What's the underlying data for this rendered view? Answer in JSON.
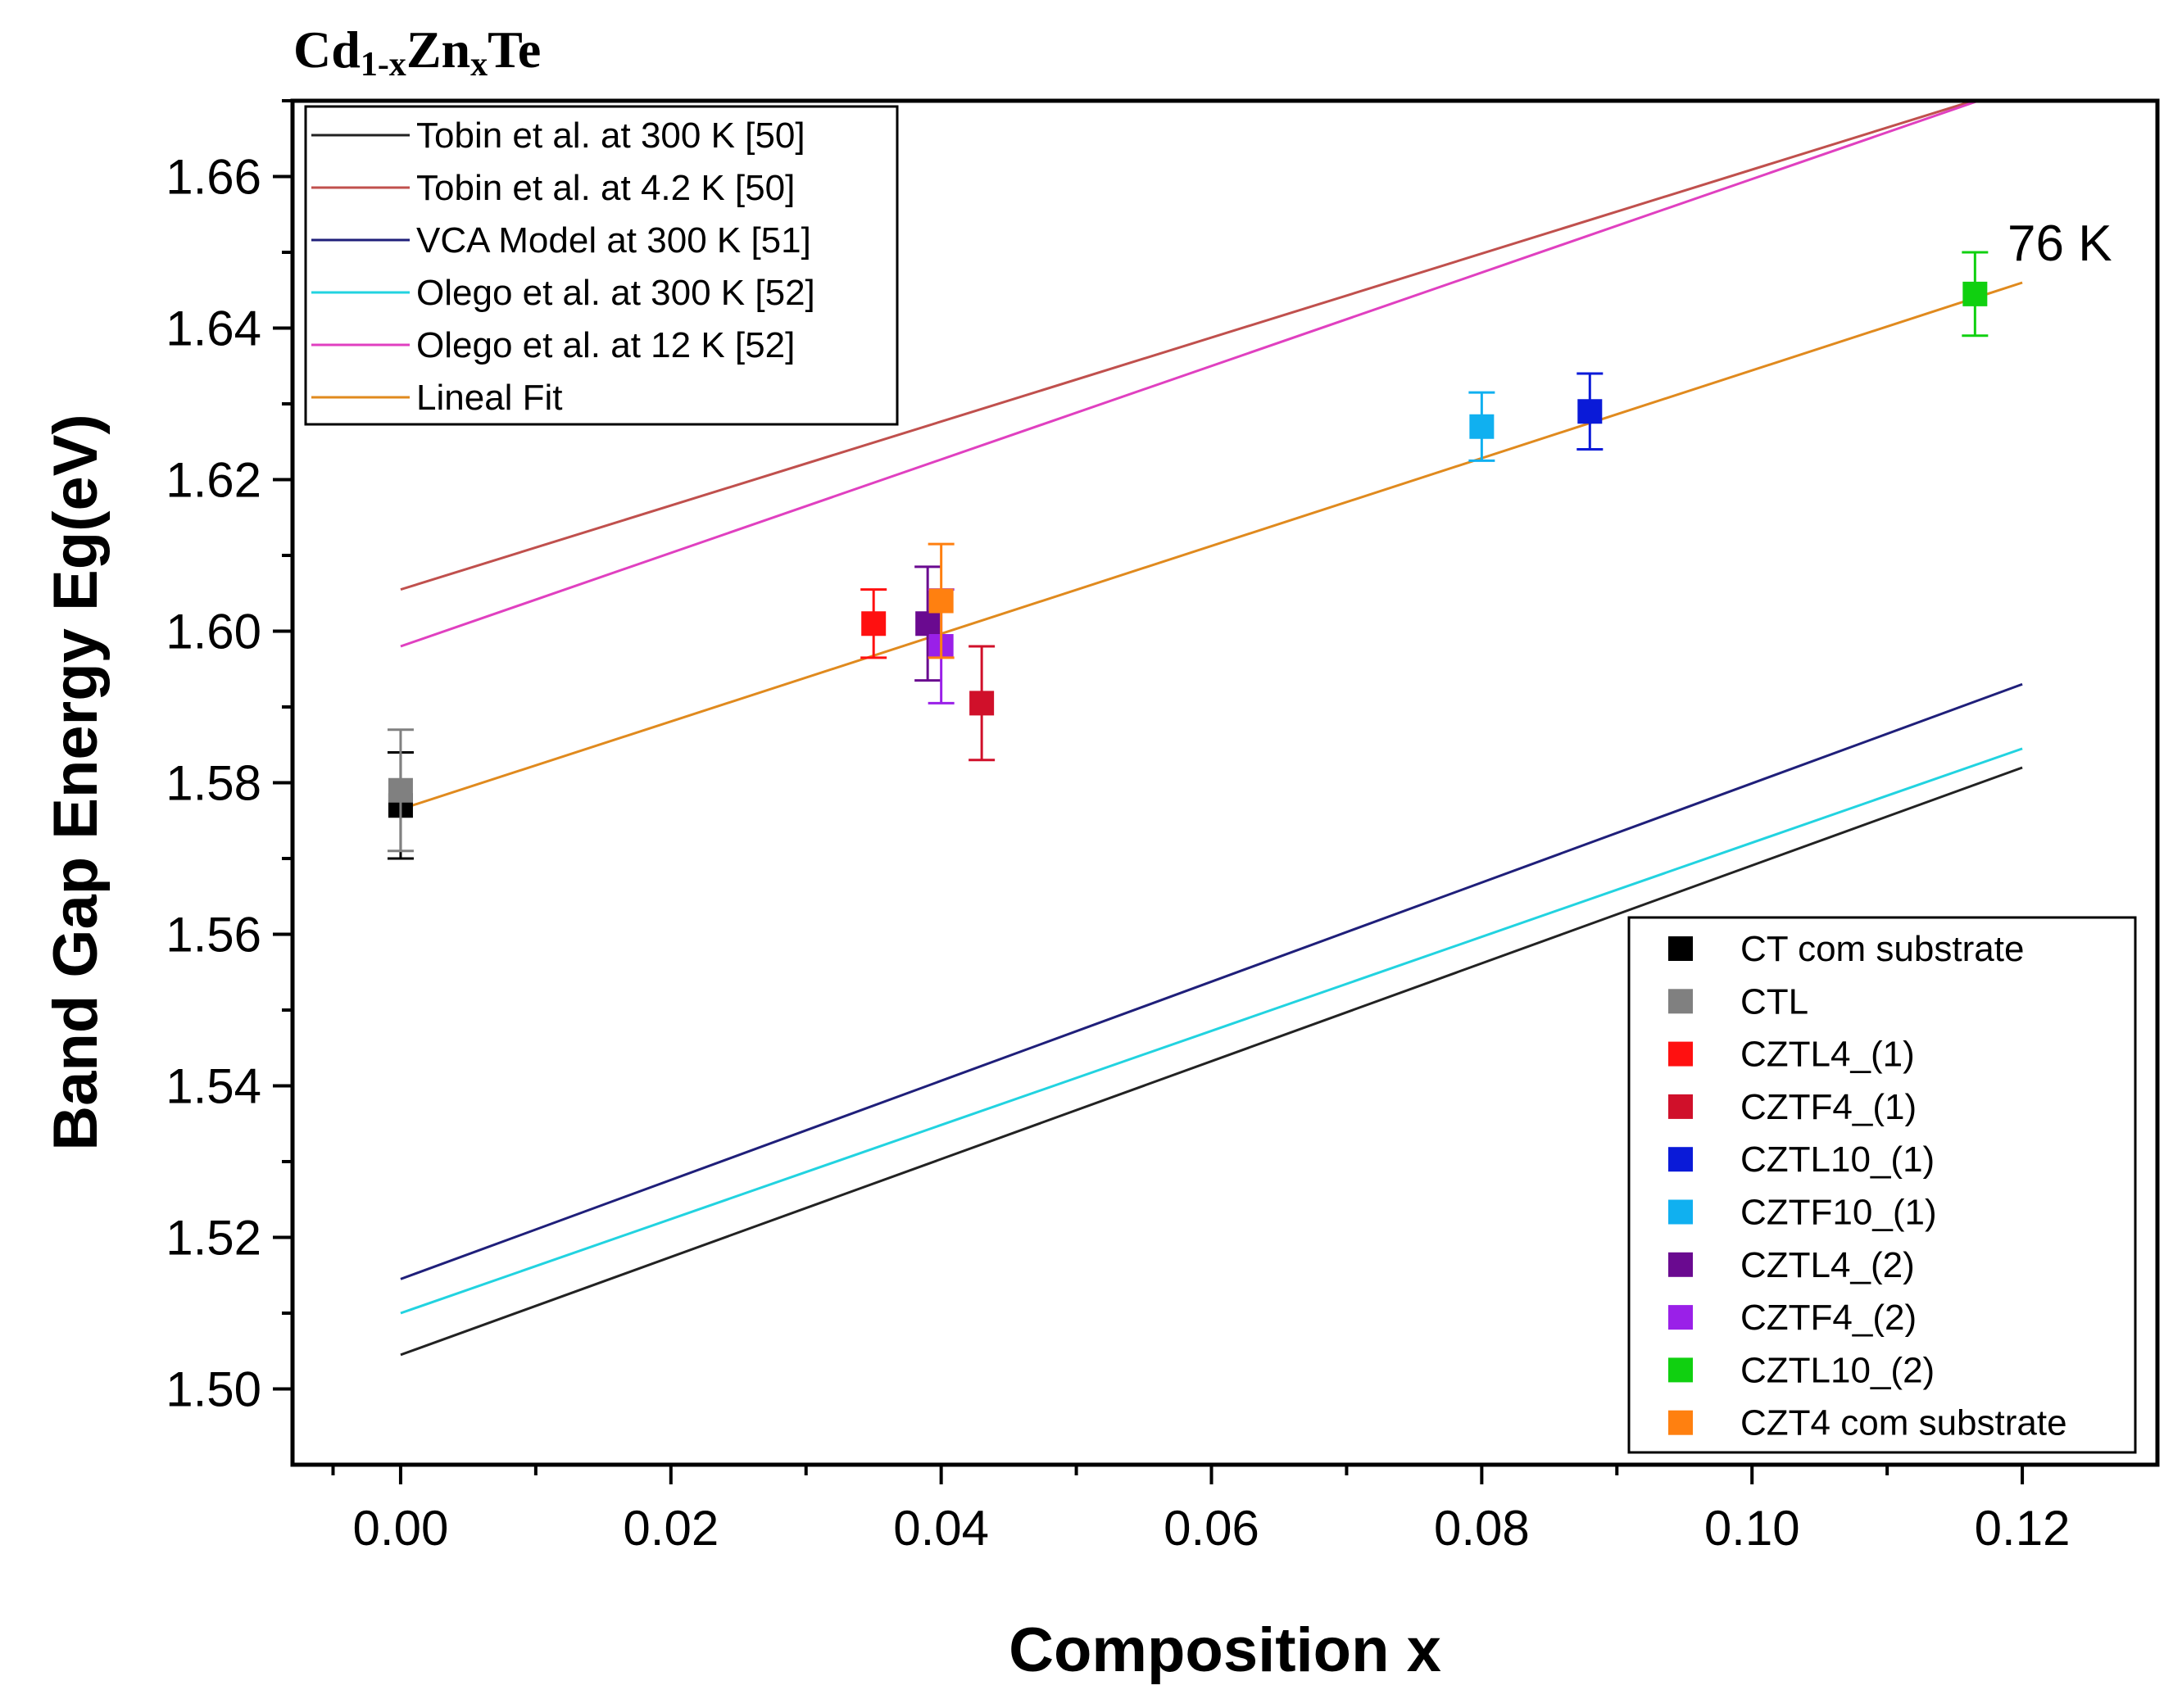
{
  "chart_data": {
    "type": "scatter",
    "title_parts": [
      {
        "text": "Cd",
        "sub": false
      },
      {
        "text": "1-x",
        "sub": true
      },
      {
        "text": "Zn",
        "sub": false
      },
      {
        "text": "x",
        "sub": true
      },
      {
        "text": "Te",
        "sub": false
      }
    ],
    "xlabel": "Composition x",
    "ylabel": "Band Gap Energy Eg(eV)",
    "xlim": [
      -0.008,
      0.13
    ],
    "ylim": [
      1.49,
      1.67
    ],
    "xticks": [
      0.0,
      0.02,
      0.04,
      0.06,
      0.08,
      0.1,
      0.12
    ],
    "xtick_labels": [
      "0.00",
      "0.02",
      "0.04",
      "0.06",
      "0.08",
      "0.10",
      "0.12"
    ],
    "yticks": [
      1.5,
      1.52,
      1.54,
      1.56,
      1.58,
      1.6,
      1.62,
      1.64,
      1.66
    ],
    "ytick_labels": [
      "1.50",
      "1.52",
      "1.54",
      "1.56",
      "1.58",
      "1.60",
      "1.62",
      "1.64",
      "1.66"
    ],
    "annotation": "76 K",
    "lines": [
      {
        "name": "Tobin et al. at 300 K [50]",
        "color": "#222222",
        "x": [
          0.0,
          0.12
        ],
        "y": [
          1.5045,
          1.582
        ]
      },
      {
        "name": "Tobin et al. at 4.2 K [50]",
        "color": "#c0504d",
        "x": [
          0.0,
          0.12
        ],
        "y": [
          1.6055,
          1.672
        ]
      },
      {
        "name": "VCA Model at 300 K [51]",
        "color": "#1f1f7a",
        "x": [
          0.0,
          0.12
        ],
        "y": [
          1.5145,
          1.593
        ]
      },
      {
        "name": "Olego et al. at 300 K [52]",
        "color": "#22d3e0",
        "x": [
          0.0,
          0.12
        ],
        "y": [
          1.51,
          1.5845
        ]
      },
      {
        "name": "Olego et al. at 12 K [52]",
        "color": "#e040c0",
        "x": [
          0.0,
          0.12
        ],
        "y": [
          1.598,
          1.672
        ]
      },
      {
        "name": "Lineal Fit",
        "color": "#e08a1e",
        "x": [
          0.0,
          0.12
        ],
        "y": [
          1.5765,
          1.646
        ]
      }
    ],
    "points": [
      {
        "name": "CT com substrate",
        "color": "#000000",
        "x": 0.0,
        "y": 1.577,
        "err": 0.007
      },
      {
        "name": "CTL",
        "color": "#808080",
        "x": 0.0,
        "y": 1.579,
        "err": 0.008
      },
      {
        "name": "CZTL4_(1)",
        "color": "#ff1010",
        "x": 0.035,
        "y": 1.601,
        "err": 0.0045
      },
      {
        "name": "CZTF4_(1)",
        "color": "#d0102a",
        "x": 0.043,
        "y": 1.5905,
        "err": 0.0075
      },
      {
        "name": "CZTL10_(1)",
        "color": "#0a1ad8",
        "x": 0.088,
        "y": 1.629,
        "err": 0.005
      },
      {
        "name": "CZTF10_(1)",
        "color": "#10b0f0",
        "x": 0.08,
        "y": 1.627,
        "err": 0.0045
      },
      {
        "name": "CZTL4_(2)",
        "color": "#6a0a90",
        "x": 0.039,
        "y": 1.601,
        "err": 0.0075
      },
      {
        "name": "CZTF4_(2)",
        "color": "#9a20e8",
        "x": 0.04,
        "y": 1.598,
        "err": 0.0075
      },
      {
        "name": "CZTL10_(2)",
        "color": "#10d010",
        "x": 0.1165,
        "y": 1.6445,
        "err": 0.0055
      },
      {
        "name": "CZT4 com substrate",
        "color": "#ff8010",
        "x": 0.04,
        "y": 1.604,
        "err": 0.0075
      }
    ]
  }
}
